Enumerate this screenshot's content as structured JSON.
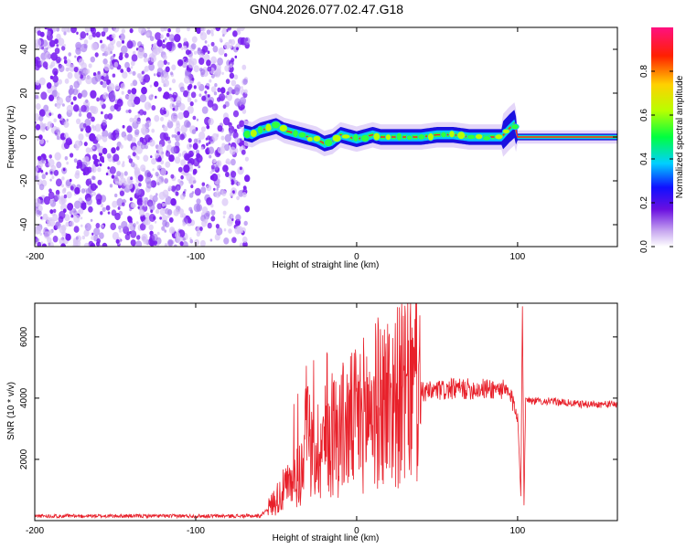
{
  "figure_title": "GN04.2026.077.02.47.G18",
  "colors": {
    "snr_line": "#e8202a",
    "scatter_noise": "#8a2be2",
    "axis": "#000000"
  },
  "chart_data": [
    {
      "type": "heatmap",
      "title": "GN04.2026.077.02.47.G18",
      "xlabel": "Height of straight line (km)",
      "ylabel": "Frequency (Hz)",
      "xlim": [
        -200,
        162
      ],
      "ylim": [
        -50,
        50
      ],
      "x_ticks": [
        -200,
        -100,
        0,
        100
      ],
      "y_ticks": [
        -40,
        -20,
        0,
        20,
        40
      ],
      "noise_region_x": [
        -200,
        -68
      ],
      "signal_region_x": [
        -70,
        162
      ],
      "ridge": {
        "x": [
          -70,
          -65,
          -60,
          -55,
          -50,
          -45,
          -40,
          -35,
          -30,
          -25,
          -20,
          -15,
          -10,
          -5,
          0,
          5,
          10,
          15,
          20,
          30,
          40,
          50,
          60,
          70,
          80,
          90,
          95,
          98,
          100,
          110,
          120,
          130,
          140,
          150,
          162
        ],
        "y": [
          2,
          1,
          3,
          4,
          5,
          3,
          2,
          1,
          0,
          -1,
          -3,
          -2,
          1,
          0,
          -1,
          0,
          1,
          0,
          0,
          0,
          0,
          1,
          1,
          0,
          0,
          0,
          4,
          6,
          0,
          0,
          0,
          0,
          0,
          0,
          0
        ]
      },
      "colorbar": {
        "label": "Normalized spectral amplitude",
        "range": [
          0,
          1
        ],
        "ticks": [
          0.0,
          0.2,
          0.4,
          0.6,
          0.8
        ],
        "tick_labels": [
          "0.0",
          "0.2",
          "0.4",
          "0.6",
          "0.8"
        ]
      }
    },
    {
      "type": "line",
      "xlabel": "Height of straight line (km)",
      "ylabel": "SNR (10 * v/v)",
      "xlim": [
        -200,
        162
      ],
      "ylim": [
        0,
        7100
      ],
      "x_ticks": [
        -200,
        -100,
        0,
        100
      ],
      "y_ticks": [
        2000,
        4000,
        6000
      ],
      "series": [
        {
          "name": "SNR",
          "x": [
            -200,
            -150,
            -100,
            -70,
            -60,
            -55,
            -50,
            -45,
            -40,
            -35,
            -30,
            -25,
            -20,
            -15,
            -10,
            -5,
            0,
            5,
            10,
            15,
            20,
            25,
            30,
            35,
            40,
            45,
            50,
            55,
            60,
            70,
            80,
            90,
            95,
            100,
            102,
            103,
            104,
            105,
            110,
            120,
            130,
            140,
            150,
            162
          ],
          "y": [
            150,
            150,
            150,
            150,
            150,
            400,
            700,
            1000,
            1200,
            1600,
            2000,
            2300,
            2600,
            2800,
            3000,
            3100,
            3300,
            3500,
            3700,
            3900,
            4000,
            4050,
            4100,
            4150,
            4200,
            4200,
            4250,
            4250,
            4300,
            4300,
            4300,
            4300,
            4100,
            3500,
            800,
            7000,
            500,
            4000,
            3900,
            3900,
            3850,
            3800,
            3800,
            3800
          ]
        }
      ]
    }
  ]
}
